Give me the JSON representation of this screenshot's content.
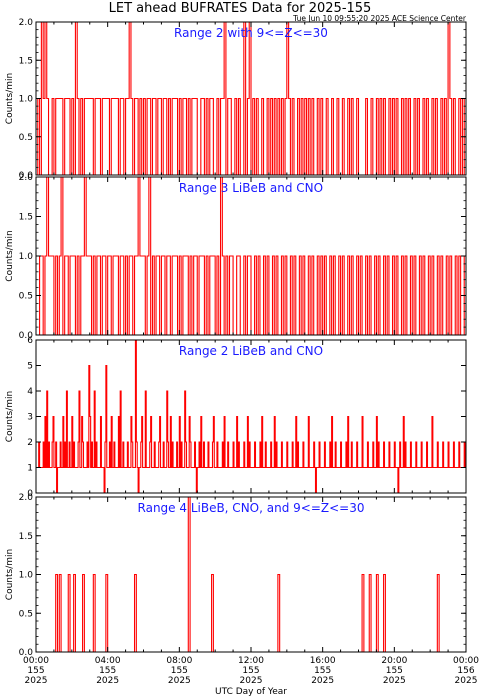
{
  "title": "LET ahead BUFRATES Data for 2025-155",
  "timestamp": "Tue Jun 10 09:55:20 2025 ACE Science Center",
  "series_color": "#ff0000",
  "label_color": "#1a1aff",
  "chart_data": {
    "type": "line",
    "x_axis": {
      "label": "UTC Day of Year",
      "range_hours": [
        0,
        24
      ],
      "ticks": [
        {
          "time": "00:00",
          "doy": "155",
          "year": "2025"
        },
        {
          "time": "04:00",
          "doy": "155",
          "year": "2025"
        },
        {
          "time": "08:00",
          "doy": "155",
          "year": "2025"
        },
        {
          "time": "12:00",
          "doy": "155",
          "year": "2025"
        },
        {
          "time": "16:00",
          "doy": "155",
          "year": "2025"
        },
        {
          "time": "20:00",
          "doy": "155",
          "year": "2025"
        },
        {
          "time": "00:00",
          "doy": "156",
          "year": "2025"
        }
      ]
    },
    "panels": [
      {
        "label": "Range 2 with 9<=Z<=30",
        "ylabel": "Counts/min",
        "ylim": [
          0,
          2
        ],
        "yticks": [
          "0.0",
          "0.5",
          "1.0",
          "1.5",
          "2.0"
        ],
        "hits_1": [
          0.1,
          0.25,
          0.37,
          0.48,
          0.55,
          0.62,
          0.85,
          0.95,
          1.05,
          1.2,
          1.32,
          1.45,
          1.55,
          1.72,
          1.8,
          1.95,
          2.05,
          2.18,
          2.3,
          2.45,
          2.55,
          2.68,
          2.8,
          2.92,
          3.05,
          3.15,
          3.3,
          3.42,
          3.5,
          3.65,
          3.8,
          3.88,
          4.05,
          4.15,
          4.3,
          4.42,
          4.55,
          4.68,
          4.8,
          4.95,
          5.1,
          5.22,
          5.35,
          5.5,
          5.62,
          5.75,
          5.85,
          6.0,
          6.15,
          6.3,
          6.45,
          6.6,
          6.75,
          6.9,
          7.05,
          7.2,
          7.4,
          7.55,
          7.7,
          7.85,
          8.0,
          8.15,
          8.3,
          8.5,
          8.65,
          8.8,
          8.95,
          9.15,
          9.35,
          9.5,
          9.7,
          9.85,
          10.05,
          10.25,
          10.45,
          10.65,
          10.85,
          11.05,
          11.3,
          11.55,
          11.85,
          12.1,
          12.35,
          12.6,
          12.85,
          13.1,
          13.3,
          13.5,
          13.7,
          13.9,
          14.1,
          14.3,
          14.55,
          14.75,
          15.0,
          15.2,
          15.45,
          15.7,
          15.95,
          16.2,
          16.5,
          16.75,
          17.1,
          17.35,
          17.65,
          17.95,
          18.45,
          18.7,
          19.0,
          19.2,
          19.45,
          19.7,
          19.95,
          20.15,
          20.4,
          20.6,
          20.8,
          21.05,
          21.3,
          21.55,
          21.8,
          22.05,
          22.3,
          22.55,
          22.8,
          23.05,
          23.3,
          23.55,
          23.8
        ],
        "hits_2": [
          0.3,
          0.45,
          2.2,
          5.2,
          10.5,
          11.6,
          11.9,
          14.0,
          23.0
        ],
        "trace_count": 4
      },
      {
        "label": "Range 3 LiBeB and CNO",
        "ylabel": "Counts/min",
        "ylim": [
          0,
          2
        ],
        "yticks": [
          "0.0",
          "0.5",
          "1.0",
          "1.5",
          "2.0"
        ],
        "hits_1": [
          0.2,
          0.35,
          0.5,
          0.65,
          0.8,
          0.95,
          1.1,
          1.25,
          1.4,
          1.55,
          1.7,
          1.85,
          2.0,
          2.15,
          2.3,
          2.45,
          2.6,
          2.75,
          2.9,
          3.05,
          3.2,
          3.35,
          3.5,
          3.65,
          3.8,
          3.95,
          4.1,
          4.25,
          4.4,
          4.55,
          4.7,
          4.85,
          5.0,
          5.15,
          5.3,
          5.45,
          5.6,
          5.75,
          5.9,
          6.05,
          6.2,
          6.35,
          6.5,
          6.65,
          6.8,
          6.95,
          7.1,
          7.25,
          7.4,
          7.55,
          7.7,
          7.85,
          8.0,
          8.15,
          8.3,
          8.45,
          8.6,
          8.75,
          8.9,
          9.05,
          9.2,
          9.35,
          9.5,
          9.65,
          9.8,
          9.95,
          10.1,
          10.25,
          10.4,
          10.55,
          10.75,
          10.95,
          11.15,
          11.35,
          11.55,
          11.75,
          11.95,
          12.15,
          12.4,
          12.65,
          12.9,
          13.15,
          13.4,
          13.65,
          13.9,
          14.15,
          14.4,
          14.65,
          14.9,
          15.15,
          15.4,
          15.65,
          15.9,
          16.15,
          16.4,
          16.65,
          16.9,
          17.15,
          17.4,
          17.65,
          17.9,
          18.15,
          18.4,
          18.65,
          18.9,
          19.15,
          19.4,
          19.65,
          19.9,
          20.15,
          20.4,
          20.65,
          20.9,
          21.15,
          21.4,
          21.65,
          21.9,
          22.15,
          22.4,
          22.65,
          22.9,
          23.15,
          23.4,
          23.65,
          23.85
        ],
        "hits_2": [
          0.6,
          1.4,
          2.7,
          5.7,
          6.3,
          10.3
        ],
        "trace_count": 4
      },
      {
        "label": "Range 2 LiBeB and CNO",
        "ylabel": "Counts/min",
        "ylim": [
          0,
          6
        ],
        "yticks": [
          "0",
          "1",
          "2",
          "3",
          "4",
          "5",
          "6"
        ],
        "level_base": 1,
        "level_2": [
          0.15,
          0.4,
          0.7,
          0.9,
          1.1,
          1.35,
          1.6,
          1.85,
          2.1,
          2.35,
          2.6,
          2.85,
          3.1,
          3.35,
          3.6,
          3.85,
          4.1,
          4.35,
          4.6,
          4.85,
          5.1,
          5.35,
          5.6,
          5.85,
          6.1,
          6.35,
          6.6,
          6.85,
          7.1,
          7.35,
          7.6,
          7.85,
          8.1,
          8.35,
          8.6,
          8.85,
          9.1,
          9.35,
          9.6,
          9.85,
          10.1,
          10.4,
          10.7,
          11.0,
          11.3,
          11.6,
          11.9,
          12.2,
          12.5,
          12.8,
          13.1,
          13.4,
          13.7,
          14.0,
          14.3,
          14.6,
          14.9,
          15.2,
          15.5,
          15.8,
          16.1,
          16.4,
          16.7,
          17.0,
          17.3,
          17.6,
          17.9,
          18.2,
          18.5,
          18.8,
          19.1,
          19.4,
          19.7,
          20.0,
          20.3,
          20.6,
          20.9,
          21.2,
          21.5,
          21.8,
          22.1,
          22.4,
          22.7,
          23.0,
          23.3,
          23.6,
          23.9
        ],
        "level_3": [
          0.5,
          0.95,
          1.5,
          2.0,
          2.55,
          3.0,
          3.6,
          4.2,
          4.6,
          5.3,
          5.9,
          6.4,
          6.9,
          7.5,
          8.0,
          8.55,
          9.2,
          9.9,
          10.5,
          11.2,
          11.8,
          12.6,
          13.3,
          14.5,
          15.2,
          16.5,
          17.4,
          18.2,
          19.0,
          20.5,
          22.1
        ],
        "level_4": [
          0.6,
          1.7,
          2.4,
          3.25,
          4.7,
          6.1,
          7.3,
          8.3
        ],
        "level_5": [
          2.95,
          3.9
        ],
        "level_6": [
          5.55
        ],
        "zeros": [
          1.15,
          3.8,
          5.7,
          8.95,
          15.6,
          20.2
        ],
        "trace_count": 4
      },
      {
        "label": "Range 4 LiBeB, CNO, and 9<=Z<=30",
        "ylabel": "Counts/min",
        "ylim": [
          0,
          2
        ],
        "yticks": [
          "0.0",
          "0.5",
          "1.0",
          "1.5",
          "2.0"
        ],
        "hits_1": [
          1.05,
          1.3,
          1.75,
          2.15,
          2.6,
          3.2,
          3.9,
          5.45,
          9.8,
          13.5,
          18.2,
          18.6,
          19.0,
          19.4,
          22.4
        ],
        "hits_2": [
          8.5
        ],
        "trace_count": 4
      }
    ]
  }
}
